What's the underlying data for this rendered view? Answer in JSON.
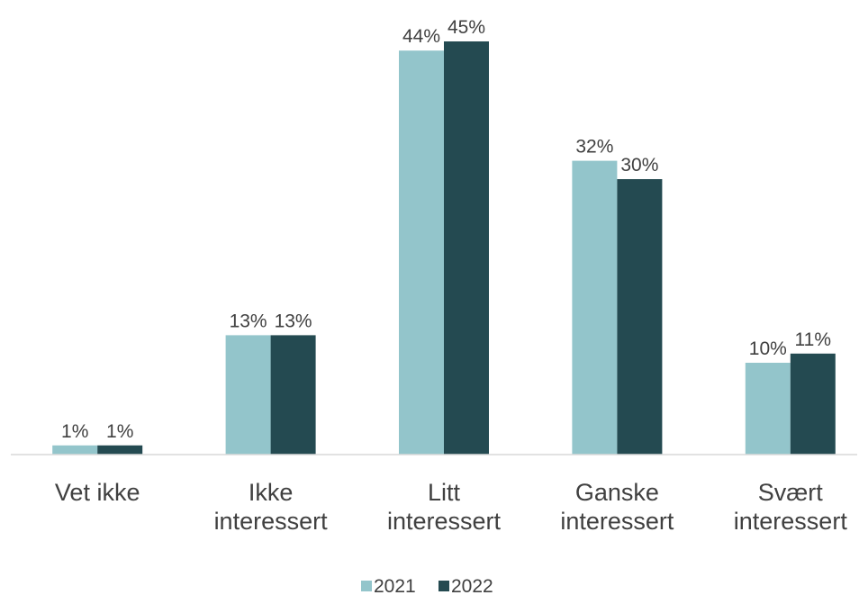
{
  "chart_data": {
    "type": "bar",
    "categories": [
      [
        "Vet ikke"
      ],
      [
        "Ikke",
        "interessert"
      ],
      [
        "Litt",
        "interessert"
      ],
      [
        "Ganske",
        "interessert"
      ],
      [
        "Svært",
        "interessert"
      ]
    ],
    "series": [
      {
        "name": "2021",
        "color": "#93C5CB",
        "values": [
          1,
          13,
          44,
          32,
          10
        ],
        "labels": [
          "1%",
          "13%",
          "44%",
          "32%",
          "10%"
        ]
      },
      {
        "name": "2022",
        "color": "#244A51",
        "values": [
          1,
          13,
          45,
          30,
          11
        ],
        "labels": [
          "1%",
          "13%",
          "45%",
          "30%",
          "11%"
        ]
      }
    ],
    "value_format": "%",
    "grid": false,
    "legend_position": "bottom"
  }
}
